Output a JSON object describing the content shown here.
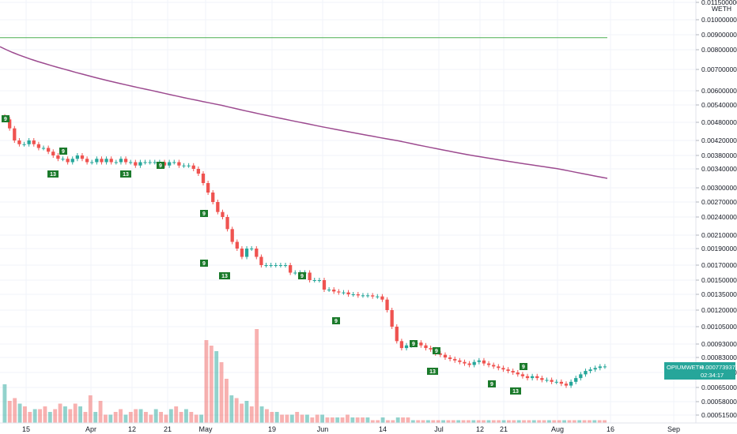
{
  "chart_data": {
    "type": "candlestick",
    "pair": "OPIUMWETH",
    "currency": "WETH",
    "last_price": "0.0007739375",
    "countdown": "02:34:17",
    "ylim": [
      0.00046,
      0.0121
    ],
    "y_ticks": [
      "0.0115000000",
      "0.0100000000",
      "0.0090000000",
      "0.0080000000",
      "0.0070000000",
      "0.0060000000",
      "0.0054000000",
      "0.0048000000",
      "0.0042000000",
      "0.0038000000",
      "0.0034000000",
      "0.0030000000",
      "0.0027000000",
      "0.0024000000",
      "0.0021000000",
      "0.0019000000",
      "0.0017000000",
      "0.0015000000",
      "0.0013500000",
      "0.0012000000",
      "0.0010500000",
      "0.0009300000",
      "0.0008300000",
      "0.0007300000",
      "0.0006500000",
      "0.0005800000",
      "0.0005150000"
    ],
    "x_ticks": [
      "15",
      "Apr",
      "12",
      "21",
      "May",
      "19",
      "Jun",
      "14",
      "Jul",
      "12",
      "21",
      "Aug",
      "16",
      "Sep"
    ],
    "close_series": [
      0.0049,
      0.0046,
      0.0042,
      0.0041,
      0.0041,
      0.0042,
      0.0041,
      0.004,
      0.004,
      0.0039,
      0.0038,
      0.0037,
      0.0037,
      0.0036,
      0.0037,
      0.0038,
      0.0037,
      0.0036,
      0.0036,
      0.0037,
      0.0036,
      0.0037,
      0.0036,
      0.0036,
      0.0037,
      0.0036,
      0.0036,
      0.0035,
      0.0036,
      0.0036,
      0.0036,
      0.0036,
      0.0036,
      0.0035,
      0.0036,
      0.0036,
      0.0035,
      0.0035,
      0.0035,
      0.0034,
      0.0033,
      0.0031,
      0.0029,
      0.0027,
      0.0025,
      0.0024,
      0.0022,
      0.002,
      0.0019,
      0.0018,
      0.0019,
      0.0019,
      0.0018,
      0.0017,
      0.0017,
      0.0017,
      0.0017,
      0.0017,
      0.0017,
      0.0016,
      0.0016,
      0.0016,
      0.0016,
      0.0015,
      0.0015,
      0.0015,
      0.0014,
      0.0014,
      0.00138,
      0.00137,
      0.00137,
      0.00135,
      0.00135,
      0.00134,
      0.00134,
      0.00134,
      0.00133,
      0.00133,
      0.0013,
      0.0012,
      0.00105,
      0.00095,
      0.0009,
      0.00092,
      0.00093,
      0.00094,
      0.00092,
      0.0009,
      0.00089,
      0.00086,
      0.00085,
      0.00083,
      0.00082,
      0.00081,
      0.0008,
      0.00079,
      0.00078,
      0.0008,
      0.00081,
      0.00079,
      0.00078,
      0.00077,
      0.00076,
      0.00075,
      0.00074,
      0.00073,
      0.00072,
      0.00071,
      0.0007,
      0.00071,
      0.0007,
      0.00069,
      0.00069,
      0.00068,
      0.00068,
      0.00067,
      0.00066,
      0.00068,
      0.0007,
      0.00072,
      0.00074,
      0.00075,
      0.00076,
      0.00077,
      0.00077
    ],
    "volume_series": [
      14,
      8,
      9,
      7,
      6,
      4,
      5,
      5,
      6,
      4,
      5,
      7,
      6,
      5,
      7,
      6,
      4,
      10,
      4,
      8,
      3,
      3,
      4,
      5,
      3,
      4,
      5,
      5,
      4,
      3,
      5,
      4,
      3,
      5,
      6,
      4,
      5,
      4,
      3,
      3,
      30,
      28,
      26,
      22,
      16,
      10,
      9,
      7,
      8,
      6,
      34,
      6,
      5,
      4,
      4,
      3,
      3,
      3,
      4,
      3,
      3,
      2,
      3,
      3,
      2,
      2,
      2,
      2,
      3,
      2,
      2,
      2,
      2,
      1,
      1,
      2,
      1,
      1,
      2,
      2,
      2,
      1,
      1,
      1,
      1,
      1,
      1,
      1,
      1,
      1,
      1,
      1,
      1,
      1,
      1,
      1,
      1,
      1,
      1,
      1,
      1,
      1,
      1,
      1,
      1,
      1,
      1,
      1,
      1,
      1,
      1,
      1,
      1,
      1,
      1,
      1,
      1,
      1,
      1,
      1
    ],
    "horizontal_line": 0.0088,
    "moving_average": [
      [
        0,
        0.0082
      ],
      [
        765,
        0.0032
      ]
    ],
    "grid": true
  }
}
